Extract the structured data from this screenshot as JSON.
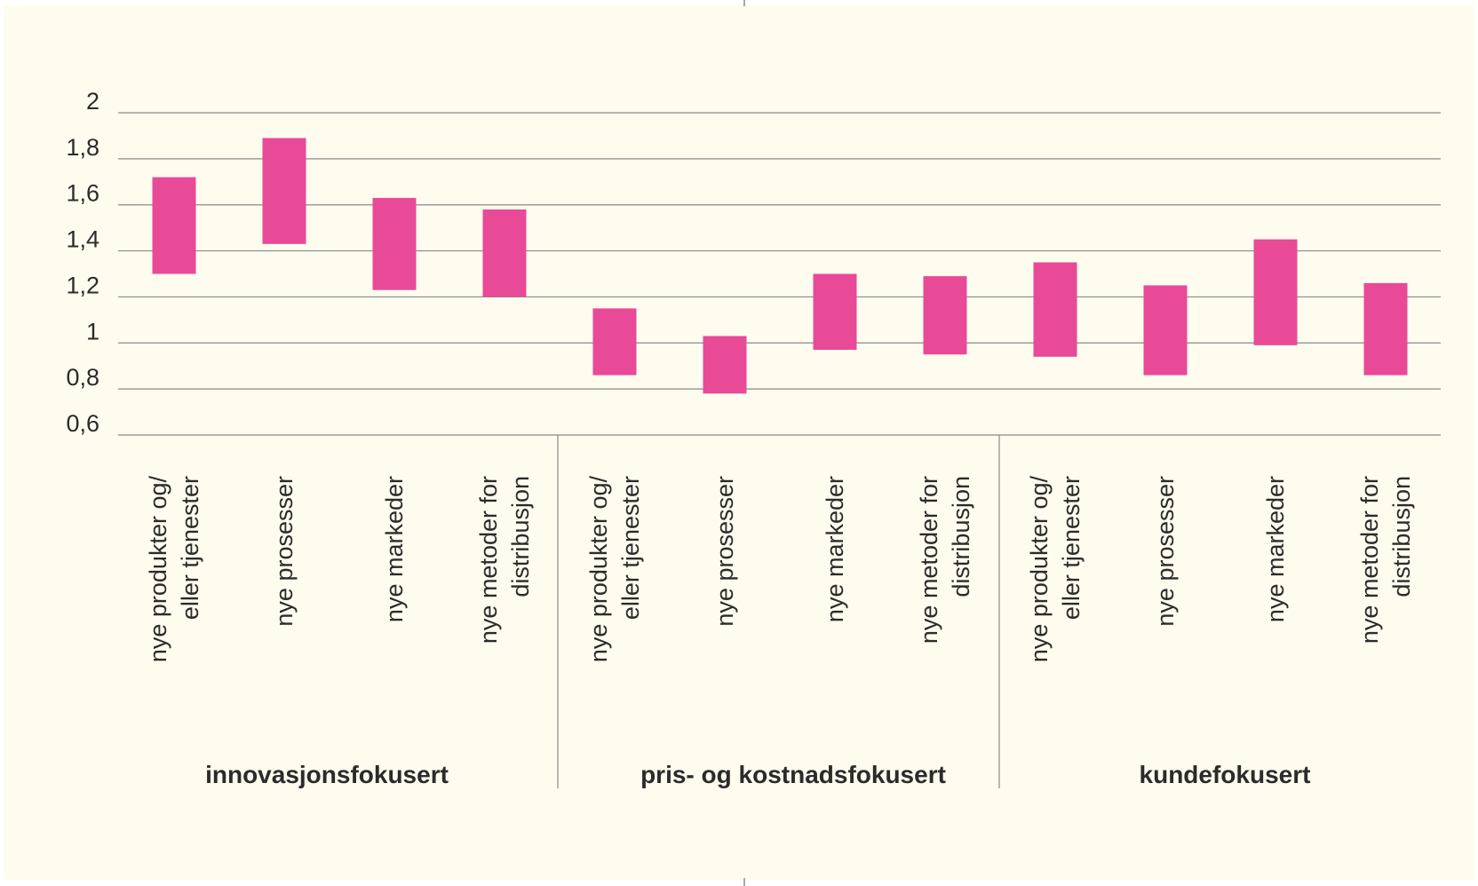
{
  "colors": {
    "background": "#fdfcee",
    "bar": "#e84a97",
    "grid": "#8a8a8a",
    "text": "#2b2b2b"
  },
  "chart_data": {
    "type": "bar",
    "subtype": "floating-range",
    "title": "",
    "xlabel": "",
    "ylabel": "",
    "ylim": [
      0.6,
      2
    ],
    "yticks": [
      "2",
      "1,8",
      "1,6",
      "1,4",
      "1,2",
      "1",
      "0,8",
      "0,6"
    ],
    "ytick_values": [
      2,
      1.8,
      1.6,
      1.4,
      1.2,
      1,
      0.8,
      0.6
    ],
    "grid": true,
    "legend": "none",
    "groups": [
      {
        "name": "innovasjonsfokusert",
        "categories": [
          {
            "label": [
              "nye produkter og/",
              "eller tjenester"
            ],
            "low": 1.3,
            "high": 1.72
          },
          {
            "label": [
              "nye prosesser"
            ],
            "low": 1.43,
            "high": 1.89
          },
          {
            "label": [
              "nye markeder"
            ],
            "low": 1.23,
            "high": 1.63
          },
          {
            "label": [
              "nye metoder for",
              "distribusjon"
            ],
            "low": 1.2,
            "high": 1.58
          }
        ]
      },
      {
        "name": "pris- og kostnadsfokusert",
        "categories": [
          {
            "label": [
              "nye produkter og/",
              "eller tjenester"
            ],
            "low": 0.86,
            "high": 1.15
          },
          {
            "label": [
              "nye prosesser"
            ],
            "low": 0.78,
            "high": 1.03
          },
          {
            "label": [
              "nye markeder"
            ],
            "low": 0.97,
            "high": 1.3
          },
          {
            "label": [
              "nye metoder for",
              "distribusjon"
            ],
            "low": 0.95,
            "high": 1.29
          }
        ]
      },
      {
        "name": "kundefokusert",
        "categories": [
          {
            "label": [
              "nye produkter og/",
              "eller tjenester"
            ],
            "low": 0.94,
            "high": 1.35
          },
          {
            "label": [
              "nye prosesser"
            ],
            "low": 0.86,
            "high": 1.25
          },
          {
            "label": [
              "nye markeder"
            ],
            "low": 0.99,
            "high": 1.45
          },
          {
            "label": [
              "nye metoder for",
              "distribusjon"
            ],
            "low": 0.86,
            "high": 1.26
          }
        ]
      }
    ]
  }
}
